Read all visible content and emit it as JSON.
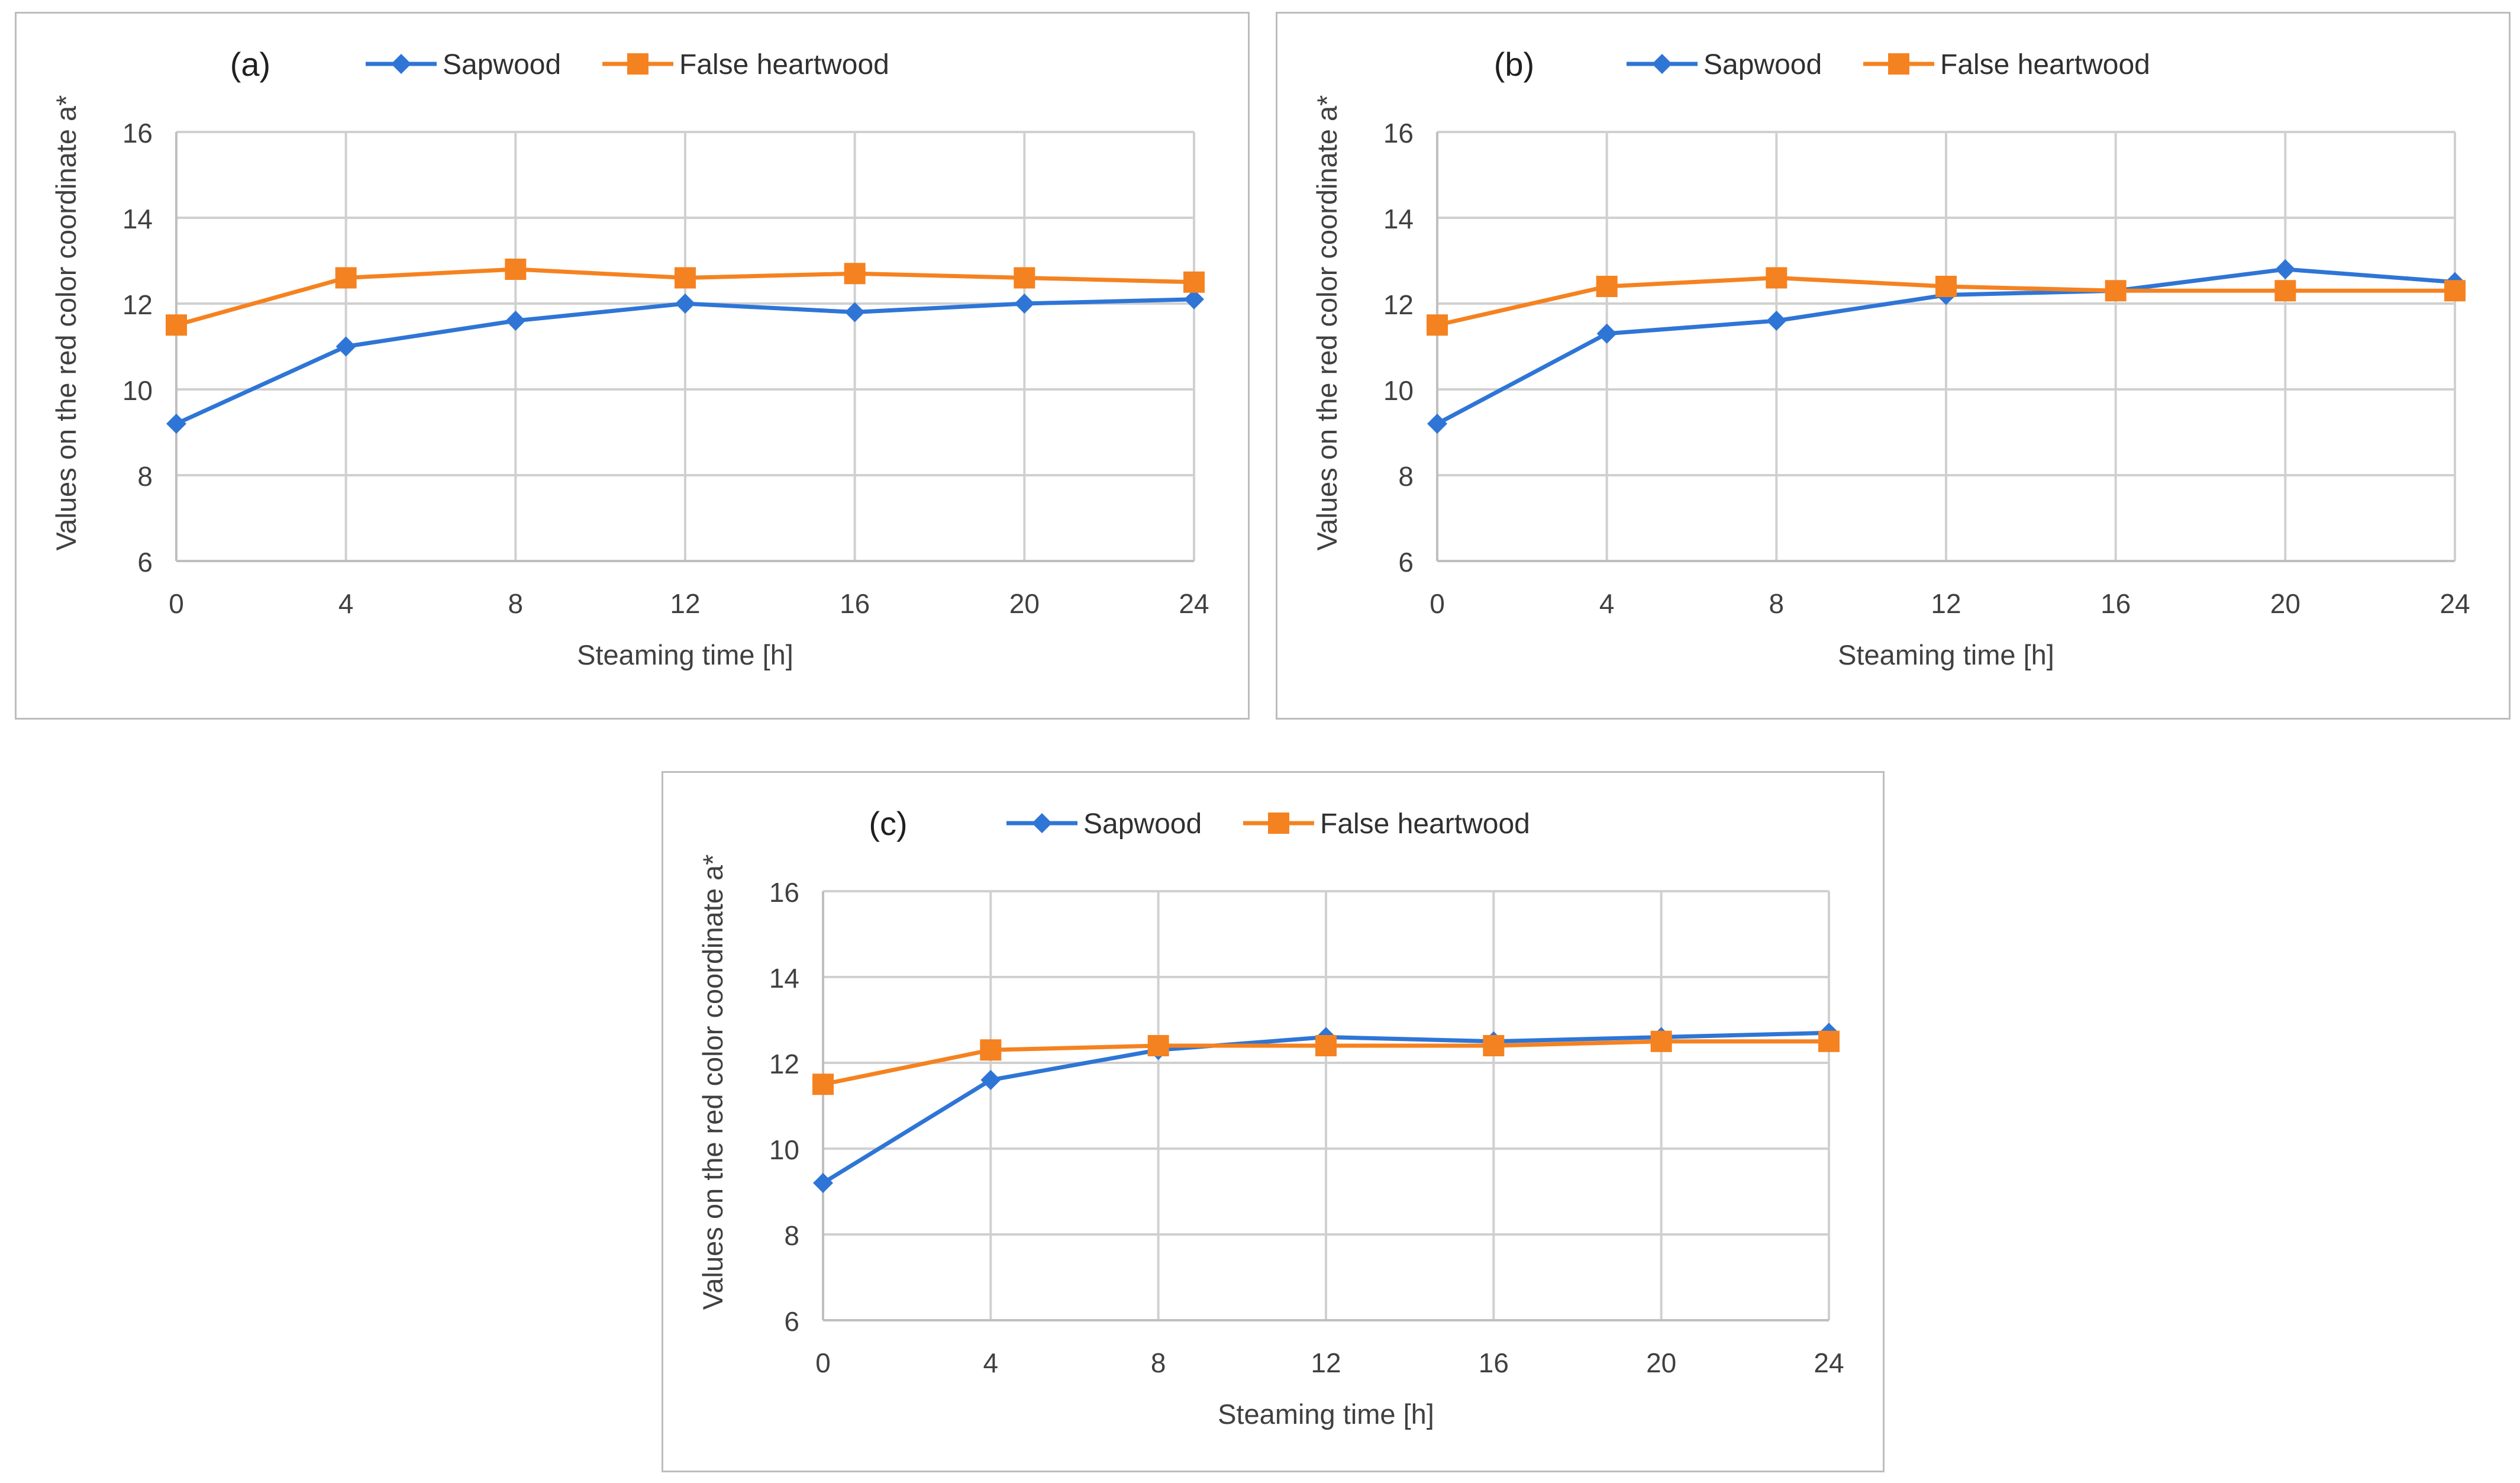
{
  "chart_data": [
    {
      "type": "line",
      "panel_label": "(a)",
      "title": "",
      "xlabel": "Steaming time [h]",
      "ylabel": "Values on the red color coordinate a*",
      "x": [
        0,
        4,
        8,
        12,
        16,
        20,
        24
      ],
      "x_tick_labels": [
        "0",
        "4",
        "8",
        "12",
        "16",
        "20",
        "24"
      ],
      "y_tick_labels": [
        "6",
        "8",
        "10",
        "12",
        "14",
        "16"
      ],
      "ylim": [
        6,
        16
      ],
      "grid": true,
      "legend_position": "top",
      "series": [
        {
          "name": "Sapwood",
          "marker": "diamond",
          "color": "#2e75d6",
          "values": [
            9.2,
            11.0,
            11.6,
            12.0,
            11.8,
            12.0,
            12.1
          ]
        },
        {
          "name": "False heartwood",
          "marker": "square",
          "color": "#f58220",
          "values": [
            11.5,
            12.6,
            12.8,
            12.6,
            12.7,
            12.6,
            12.5
          ]
        }
      ]
    },
    {
      "type": "line",
      "panel_label": "(b)",
      "title": "",
      "xlabel": "Steaming time [h]",
      "ylabel": "Values on the red color coordinate a*",
      "x": [
        0,
        4,
        8,
        12,
        16,
        20,
        24
      ],
      "x_tick_labels": [
        "0",
        "4",
        "8",
        "12",
        "16",
        "20",
        "24"
      ],
      "y_tick_labels": [
        "6",
        "8",
        "10",
        "12",
        "14",
        "16"
      ],
      "ylim": [
        6,
        16
      ],
      "grid": true,
      "legend_position": "top",
      "series": [
        {
          "name": "Sapwood",
          "marker": "diamond",
          "color": "#2e75d6",
          "values": [
            9.2,
            11.3,
            11.6,
            12.2,
            12.3,
            12.8,
            12.5
          ]
        },
        {
          "name": "False heartwood",
          "marker": "square",
          "color": "#f58220",
          "values": [
            11.5,
            12.4,
            12.6,
            12.4,
            12.3,
            12.3,
            12.3
          ]
        }
      ]
    },
    {
      "type": "line",
      "panel_label": "(c)",
      "title": "",
      "xlabel": "Steaming time [h]",
      "ylabel": "Values on the red color coordinate a*",
      "x": [
        0,
        4,
        8,
        12,
        16,
        20,
        24
      ],
      "x_tick_labels": [
        "0",
        "4",
        "8",
        "12",
        "16",
        "20",
        "24"
      ],
      "y_tick_labels": [
        "6",
        "8",
        "10",
        "12",
        "14",
        "16"
      ],
      "ylim": [
        6,
        16
      ],
      "grid": true,
      "legend_position": "top",
      "series": [
        {
          "name": "Sapwood",
          "marker": "diamond",
          "color": "#2e75d6",
          "values": [
            9.2,
            11.6,
            12.3,
            12.6,
            12.5,
            12.6,
            12.7
          ]
        },
        {
          "name": "False heartwood",
          "marker": "square",
          "color": "#f58220",
          "values": [
            11.5,
            12.3,
            12.4,
            12.4,
            12.4,
            12.5,
            12.5
          ]
        }
      ]
    }
  ]
}
